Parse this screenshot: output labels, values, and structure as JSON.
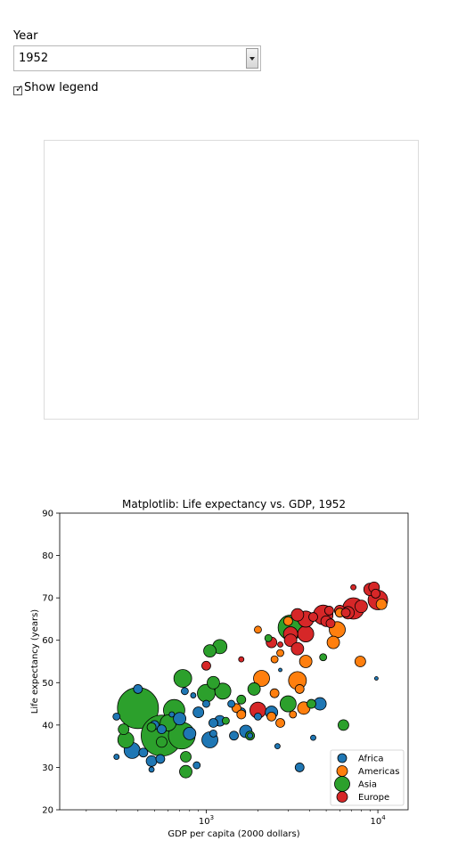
{
  "controls": {
    "year_label": "Year",
    "year_value": "1952",
    "legend_label": "Show legend",
    "legend_checked": true
  },
  "colors": {
    "Africa": "#1f77b4",
    "Americas": "#ff7f0e",
    "Asia": "#2ca02c",
    "Europe": "#d62728"
  },
  "chart_data": {
    "type": "scatter",
    "title": "Matplotlib: Life expectancy vs. GDP, 1952",
    "xlabel": "GDP per capita (2000 dollars)",
    "ylabel": "Life expectancy (years)",
    "xscale": "log",
    "xlim": [
      140,
      15000
    ],
    "ylim": [
      20,
      90
    ],
    "yticks": [
      "20",
      "30",
      "40",
      "50",
      "60",
      "70",
      "80",
      "90"
    ],
    "xticks": [
      {
        "base": "10",
        "exp": "3",
        "value": 1000
      },
      {
        "base": "10",
        "exp": "4",
        "value": 10000
      }
    ],
    "legend": {
      "position": "lower right",
      "entries": [
        "Africa",
        "Americas",
        "Asia",
        "Europe"
      ]
    },
    "series": [
      {
        "name": "Africa",
        "points": [
          [
            400,
            48.5,
            5
          ],
          [
            700,
            41.5,
            7
          ],
          [
            1200,
            41,
            6
          ],
          [
            900,
            43,
            6
          ],
          [
            300,
            42,
            4
          ],
          [
            500,
            40,
            5
          ],
          [
            550,
            39,
            5
          ],
          [
            800,
            38,
            7
          ],
          [
            1100,
            38,
            4
          ],
          [
            1450,
            37.5,
            5
          ],
          [
            2400,
            43,
            7
          ],
          [
            1700,
            38.5,
            7
          ],
          [
            2600,
            35,
            3
          ],
          [
            4200,
            37,
            3
          ],
          [
            370,
            34,
            9
          ],
          [
            430,
            33.5,
            5
          ],
          [
            480,
            31.5,
            6
          ],
          [
            540,
            32,
            5
          ],
          [
            880,
            30.5,
            4
          ],
          [
            3500,
            30,
            5
          ],
          [
            300,
            32.5,
            3
          ],
          [
            1050,
            36.5,
            9
          ],
          [
            1400,
            45,
            4
          ],
          [
            1600,
            43,
            5
          ],
          [
            2000,
            42,
            4
          ],
          [
            4600,
            45,
            7
          ],
          [
            1100,
            40.5,
            5
          ],
          [
            750,
            48,
            4
          ],
          [
            9800,
            51,
            2
          ],
          [
            480,
            29.5,
            3
          ],
          [
            1800,
            37.5,
            3
          ],
          [
            2700,
            53,
            2
          ],
          [
            630,
            42.5,
            3
          ],
          [
            1000,
            45,
            4
          ],
          [
            840,
            47,
            3
          ]
        ]
      },
      {
        "name": "Americas",
        "points": [
          [
            2000,
            62.5,
            4
          ],
          [
            3000,
            64.5,
            5
          ],
          [
            6000,
            66.5,
            5
          ],
          [
            5800,
            62.5,
            9
          ],
          [
            5500,
            59.5,
            7
          ],
          [
            3800,
            55,
            7
          ],
          [
            2500,
            55.5,
            4
          ],
          [
            2500,
            47.5,
            5
          ],
          [
            2100,
            51,
            9
          ],
          [
            3400,
            50.5,
            10
          ],
          [
            2400,
            42,
            5
          ],
          [
            1500,
            44,
            5
          ],
          [
            2700,
            40.5,
            5
          ],
          [
            3700,
            44,
            7
          ],
          [
            3200,
            42.5,
            4
          ],
          [
            1600,
            42.5,
            5
          ],
          [
            7900,
            55,
            6
          ],
          [
            2700,
            57,
            4
          ],
          [
            10500,
            68.5,
            6
          ],
          [
            3500,
            48.5,
            5
          ]
        ]
      },
      {
        "name": "Asia",
        "points": [
          [
            400,
            44,
            23
          ],
          [
            550,
            37.5,
            23
          ],
          [
            720,
            37.5,
            15
          ],
          [
            600,
            40.5,
            9
          ],
          [
            480,
            39.5,
            5
          ],
          [
            330,
            39,
            6
          ],
          [
            340,
            36.5,
            9
          ],
          [
            550,
            36,
            6
          ],
          [
            1000,
            47.5,
            10
          ],
          [
            1250,
            48,
            9
          ],
          [
            1100,
            50,
            7
          ],
          [
            730,
            51,
            10
          ],
          [
            1900,
            48.5,
            7
          ],
          [
            1200,
            58.5,
            8
          ],
          [
            1050,
            57.5,
            7
          ],
          [
            3100,
            63,
            14
          ],
          [
            3000,
            45,
            9
          ],
          [
            4100,
            45,
            5
          ],
          [
            650,
            43.5,
            12
          ],
          [
            760,
            32.5,
            6
          ],
          [
            760,
            29,
            7
          ],
          [
            1800,
            37.5,
            5
          ],
          [
            1300,
            41,
            4
          ],
          [
            2300,
            60.5,
            4
          ],
          [
            6300,
            40,
            6
          ],
          [
            1600,
            46,
            5
          ],
          [
            4800,
            56,
            4
          ]
        ]
      },
      {
        "name": "Europe",
        "points": [
          [
            1000,
            54,
            5
          ],
          [
            1600,
            55.5,
            3
          ],
          [
            2000,
            43.5,
            9
          ],
          [
            2400,
            59.5,
            6
          ],
          [
            2700,
            59,
            3
          ],
          [
            3100,
            60,
            7
          ],
          [
            3400,
            58,
            7
          ],
          [
            3100,
            61.5,
            8
          ],
          [
            3800,
            61.5,
            9
          ],
          [
            3400,
            66,
            7
          ],
          [
            3800,
            65,
            9
          ],
          [
            4200,
            65.5,
            5
          ],
          [
            4800,
            66,
            11
          ],
          [
            5000,
            64.5,
            6
          ],
          [
            5300,
            64,
            5
          ],
          [
            5200,
            67,
            5
          ],
          [
            6000,
            67,
            6
          ],
          [
            6700,
            66.5,
            7
          ],
          [
            7200,
            67.5,
            12
          ],
          [
            8000,
            68,
            7
          ],
          [
            10000,
            69.5,
            11
          ],
          [
            9000,
            72,
            7
          ],
          [
            9500,
            72.5,
            6
          ],
          [
            9700,
            71,
            5
          ],
          [
            7200,
            72.5,
            3
          ],
          [
            6500,
            66.5,
            5
          ]
        ]
      }
    ]
  }
}
